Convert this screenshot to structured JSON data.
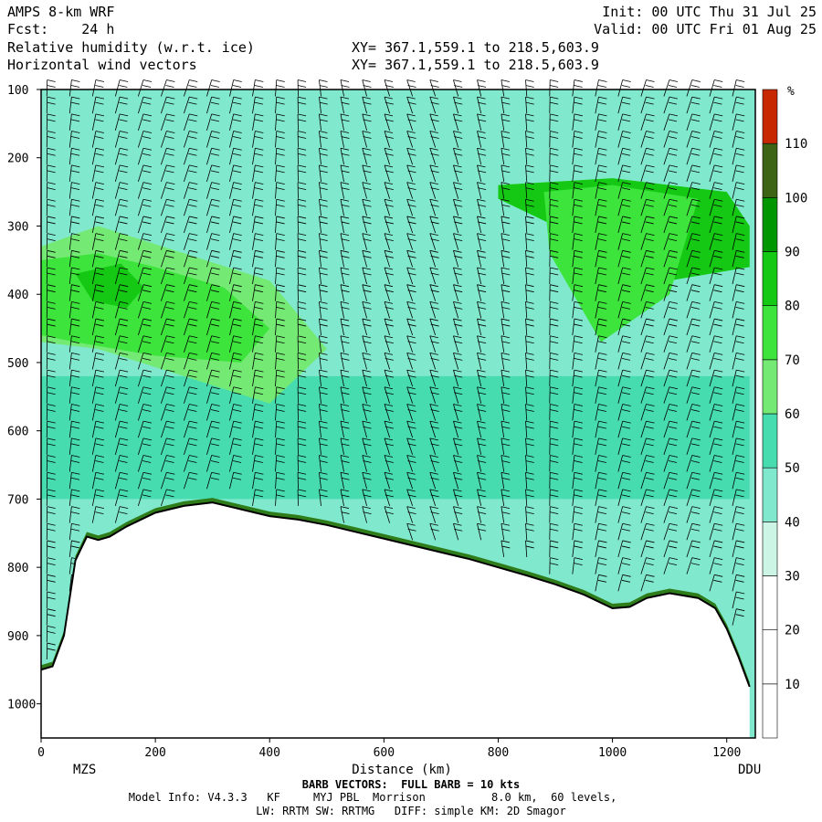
{
  "header": {
    "model": "AMPS 8-km WRF",
    "fcst": "Fcst:    24 h",
    "init": "Init: 00 UTC Thu 31 Jul 25",
    "valid": "Valid: 00 UTC Fri 01 Aug 25",
    "field1": "Relative humidity (w.r.t. ice)",
    "field2": "Horizontal wind vectors",
    "xy1": "XY= 367.1,559.1 to 218.5,603.9",
    "xy2": "XY= 367.1,559.1 to 218.5,603.9"
  },
  "footer": {
    "barb_note": "BARB VECTORS:  FULL BARB = 10 kts",
    "model_info": "Model Info: V4.3.3   KF     MYJ PBL  Morrison          8.0 km,  60 levels,",
    "physics": "LW: RRTM SW: RRTMG   DIFF: simple KM: 2D Smagor"
  },
  "chart_data": {
    "type": "heatmap",
    "title": "Relative humidity (w.r.t. ice)",
    "xlabel": "Distance (km)",
    "ylabel": "",
    "xlim": [
      0,
      1250
    ],
    "ylim": [
      1050,
      100
    ],
    "x_ticks": [
      0,
      200,
      400,
      600,
      800,
      1000,
      1200
    ],
    "x_tick_labels": [
      "0",
      "200",
      "400",
      "600",
      "800",
      "1000",
      "1200"
    ],
    "y_ticks": [
      100,
      200,
      300,
      400,
      500,
      600,
      700,
      800,
      900,
      1000
    ],
    "y_tick_labels": [
      "100",
      "200",
      "300",
      "400",
      "500",
      "600",
      "700",
      "800",
      "900",
      "1000"
    ],
    "endpoints": {
      "left": "MZS",
      "right": "DDU"
    },
    "colorbar": {
      "unit": "%",
      "levels": [
        10,
        20,
        30,
        40,
        50,
        60,
        70,
        80,
        90,
        100,
        110
      ],
      "level_labels": [
        "10",
        "20",
        "30",
        "40",
        "50",
        "60",
        "70",
        "80",
        "90",
        "100",
        "110"
      ],
      "colors": [
        "#ffffff",
        "#ffffff",
        "#ffffff",
        "#ccf5e6",
        "#80e8cc",
        "#46dcb0",
        "#74ea74",
        "#3ce43c",
        "#14c814",
        "#009600",
        "#3c6414",
        "#c82800"
      ]
    },
    "terrain": {
      "distance_km": [
        0,
        20,
        40,
        60,
        80,
        100,
        120,
        150,
        200,
        250,
        300,
        350,
        400,
        450,
        500,
        550,
        600,
        650,
        700,
        750,
        800,
        850,
        900,
        950,
        1000,
        1030,
        1060,
        1100,
        1150,
        1180,
        1200,
        1220,
        1240
      ],
      "pressure_hpa": [
        950,
        945,
        900,
        790,
        755,
        760,
        755,
        740,
        720,
        710,
        705,
        715,
        725,
        730,
        738,
        748,
        758,
        768,
        778,
        788,
        800,
        812,
        825,
        840,
        860,
        858,
        845,
        838,
        845,
        860,
        890,
        930,
        975
      ]
    },
    "rh_regions": [
      {
        "level": 50,
        "distance_km": [
          0,
          1240,
          1240,
          0
        ],
        "pressure_hpa": [
          520,
          520,
          700,
          700
        ]
      },
      {
        "level": 60,
        "distance_km": [
          0,
          100,
          250,
          400,
          500,
          400,
          250,
          100,
          0
        ],
        "pressure_hpa": [
          330,
          300,
          340,
          380,
          480,
          560,
          520,
          480,
          470
        ]
      },
      {
        "level": 70,
        "distance_km": [
          0,
          100,
          200,
          320,
          400,
          350,
          200,
          60,
          0
        ],
        "pressure_hpa": [
          350,
          340,
          360,
          390,
          450,
          500,
          490,
          470,
          460
        ]
      },
      {
        "level": 80,
        "distance_km": [
          60,
          140,
          180,
          150,
          90
        ],
        "pressure_hpa": [
          370,
          355,
          390,
          420,
          410
        ]
      },
      {
        "level": 80,
        "distance_km": [
          800,
          1000,
          1200,
          1240,
          1240,
          1100,
          900,
          800
        ],
        "pressure_hpa": [
          240,
          230,
          250,
          300,
          360,
          380,
          300,
          260
        ]
      },
      {
        "level": 70,
        "distance_km": [
          880,
          1000,
          1150,
          1100,
          980,
          890
        ],
        "pressure_hpa": [
          250,
          240,
          260,
          400,
          470,
          340
        ]
      }
    ]
  }
}
